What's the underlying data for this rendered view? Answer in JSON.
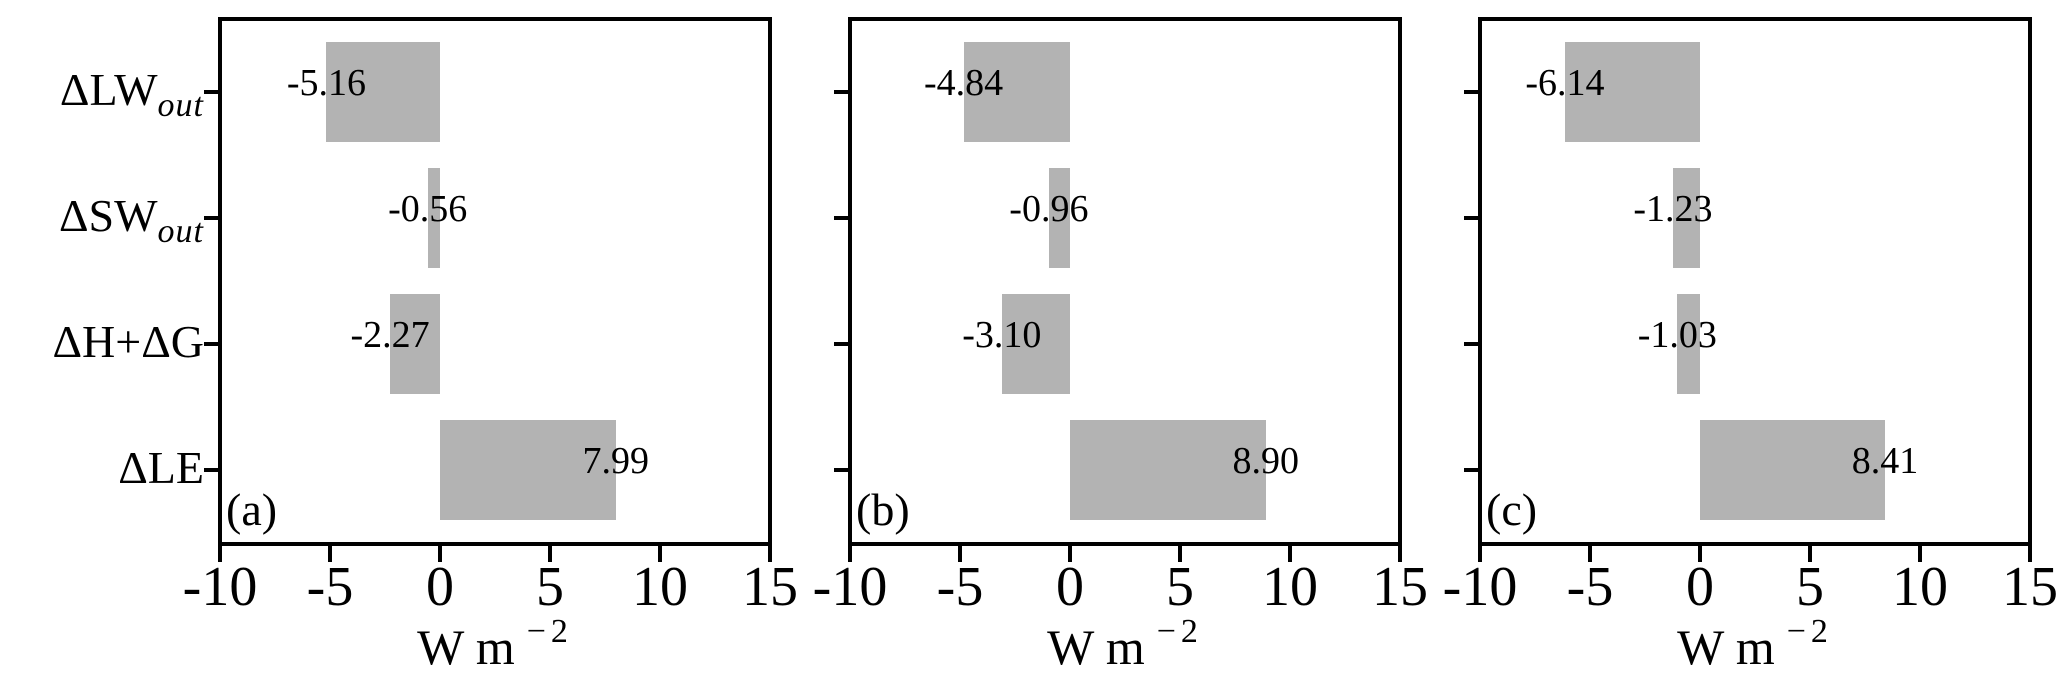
{
  "ui": {
    "bar_color": "#b3b3b3",
    "axis_color": "#000000",
    "categories": [
      {
        "main": "ΔLW",
        "sub": "out"
      },
      {
        "main": "ΔSW",
        "sub": "out"
      },
      {
        "main": "ΔH+ΔG",
        "sub": ""
      },
      {
        "main": "ΔLE",
        "sub": ""
      }
    ]
  },
  "chart_data": [
    {
      "type": "bar",
      "orientation": "horizontal",
      "panel_label": "(a)",
      "categories": [
        "ΔLW_out",
        "ΔSW_out",
        "ΔH+ΔG",
        "ΔLE"
      ],
      "values": [
        -5.16,
        -0.56,
        -2.27,
        7.99
      ],
      "bar_labels": [
        "-5.16",
        "-0.56",
        "-2.27",
        "7.99"
      ],
      "xlim": [
        -10,
        15
      ],
      "xticks": [
        -10,
        -5,
        0,
        5,
        10,
        15
      ],
      "xtick_labels": [
        "-10",
        "-5",
        "0",
        "5",
        "10",
        "15"
      ],
      "xlabel": "W m⁻²",
      "xlabel_base": "W m",
      "xlabel_sup": "−2",
      "grid": false
    },
    {
      "type": "bar",
      "orientation": "horizontal",
      "panel_label": "(b)",
      "categories": [
        "ΔLW_out",
        "ΔSW_out",
        "ΔH+ΔG",
        "ΔLE"
      ],
      "values": [
        -4.84,
        -0.96,
        -3.1,
        8.9
      ],
      "bar_labels": [
        "-4.84",
        "-0.96",
        "-3.10",
        "8.90"
      ],
      "xlim": [
        -10,
        15
      ],
      "xticks": [
        -10,
        -5,
        0,
        5,
        10,
        15
      ],
      "xtick_labels": [
        "-10",
        "-5",
        "0",
        "5",
        "10",
        "15"
      ],
      "xlabel": "W m⁻²",
      "xlabel_base": "W m",
      "xlabel_sup": "−2",
      "grid": false
    },
    {
      "type": "bar",
      "orientation": "horizontal",
      "panel_label": "(c)",
      "categories": [
        "ΔLW_out",
        "ΔSW_out",
        "ΔH+ΔG",
        "ΔLE"
      ],
      "values": [
        -6.14,
        -1.23,
        -1.03,
        8.41
      ],
      "bar_labels": [
        "-6.14",
        "-1.23",
        "-1.03",
        "8.41"
      ],
      "xlim": [
        -10,
        15
      ],
      "xticks": [
        -10,
        -5,
        0,
        5,
        10,
        15
      ],
      "xtick_labels": [
        "-10",
        "-5",
        "0",
        "5",
        "10",
        "15"
      ],
      "xlabel": "W m⁻²",
      "xlabel_base": "W m",
      "xlabel_sup": "−2",
      "grid": false
    }
  ]
}
